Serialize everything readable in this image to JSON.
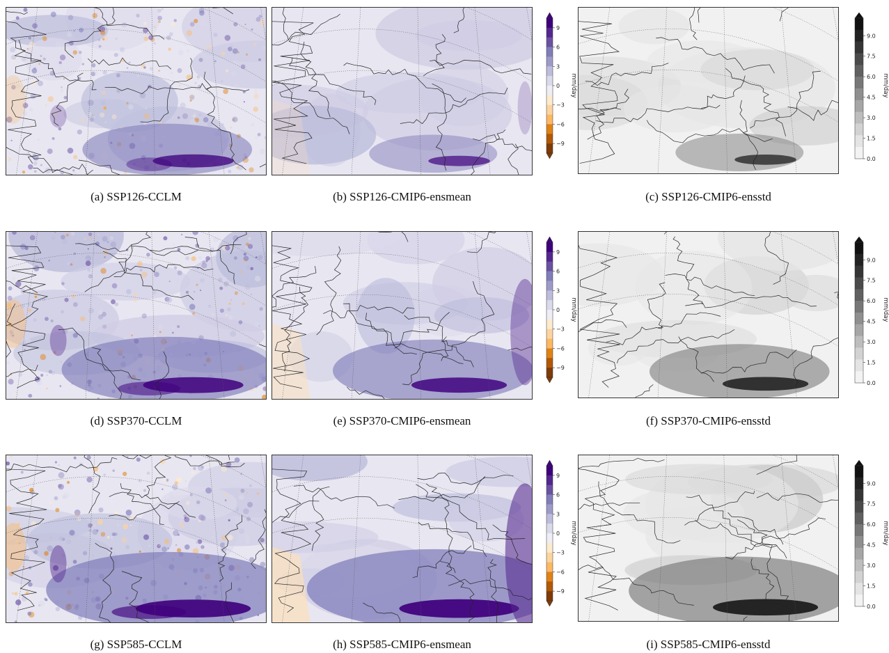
{
  "rows": [
    {
      "panels": [
        {
          "caption": "(a) SSP126-CCLM",
          "kind": "diff",
          "intensity": 0.55,
          "cclm": true
        },
        {
          "caption": "(b) SSP126-CMIP6-ensmean",
          "kind": "diff",
          "intensity": 0.35,
          "cclm": false
        },
        {
          "caption": "(c) SSP126-CMIP6-ensstd",
          "kind": "std",
          "intensity": 0.35,
          "cclm": false
        }
      ]
    },
    {
      "panels": [
        {
          "caption": "(d) SSP370-CCLM",
          "kind": "diff",
          "intensity": 0.75,
          "cclm": true
        },
        {
          "caption": "(e) SSP370-CMIP6-ensmean",
          "kind": "diff",
          "intensity": 0.7,
          "cclm": false
        },
        {
          "caption": "(f) SSP370-CMIP6-ensstd",
          "kind": "std",
          "intensity": 0.6,
          "cclm": false
        }
      ]
    },
    {
      "panels": [
        {
          "caption": "(g) SSP585-CCLM",
          "kind": "diff",
          "intensity": 0.9,
          "cclm": true
        },
        {
          "caption": "(h) SSP585-CMIP6-ensmean",
          "kind": "diff",
          "intensity": 0.95,
          "cclm": false
        },
        {
          "caption": "(i) SSP585-CMIP6-ensstd",
          "kind": "std",
          "intensity": 0.8,
          "cclm": false
        }
      ]
    }
  ],
  "colorbars": {
    "diff": {
      "unit": "mm/day",
      "ticks": [
        "9",
        "6",
        "3",
        "0",
        "−3",
        "−6",
        "−9"
      ],
      "colors": [
        "#3f007d",
        "#54278f",
        "#6a51a3",
        "#807dba",
        "#9e9ac8",
        "#bcbddc",
        "#dadaeb",
        "#efedf5",
        "#fdebd0",
        "#fdd49e",
        "#fdb863",
        "#e08214",
        "#b35806",
        "#7f3b08"
      ]
    },
    "std": {
      "unit": "mm/day",
      "ticks": [
        "9.0",
        "7.5",
        "6.0",
        "4.5",
        "3.0",
        "1.5",
        "0.0"
      ],
      "colors": [
        "#111111",
        "#222222",
        "#353535",
        "#4a4a4a",
        "#606060",
        "#777777",
        "#8f8f8f",
        "#a6a6a6",
        "#bdbdbd",
        "#d2d2d2",
        "#e4e4e4",
        "#f3f3f3"
      ]
    }
  }
}
